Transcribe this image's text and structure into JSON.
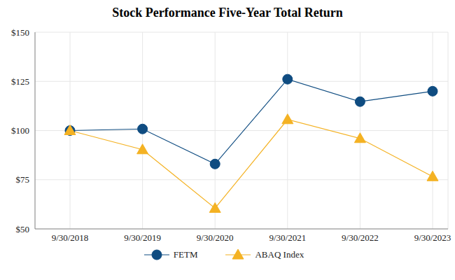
{
  "chart_data": {
    "type": "line",
    "title": "Stock Performance Five-Year Total Return",
    "categories": [
      "9/30/2018",
      "9/30/2019",
      "9/30/2020",
      "9/30/2021",
      "9/30/2022",
      "9/30/2023"
    ],
    "series": [
      {
        "name": "FETM",
        "color": "#0f4c81",
        "marker": "circle",
        "values": [
          100,
          100.8,
          83,
          126.1,
          114.7,
          120
        ]
      },
      {
        "name": "ABAQ Index",
        "color": "#f4b223",
        "marker": "triangle",
        "values": [
          100,
          90.3,
          60.5,
          105.6,
          96,
          76.6
        ]
      }
    ],
    "ylim": [
      50,
      150
    ],
    "yticks": [
      {
        "value": 50,
        "label": "$50"
      },
      {
        "value": 75,
        "label": "$75"
      },
      {
        "value": 100,
        "label": "$100"
      },
      {
        "value": 125,
        "label": "$125"
      },
      {
        "value": 150,
        "label": "$150"
      }
    ],
    "grid": true,
    "legend": "bottom"
  }
}
